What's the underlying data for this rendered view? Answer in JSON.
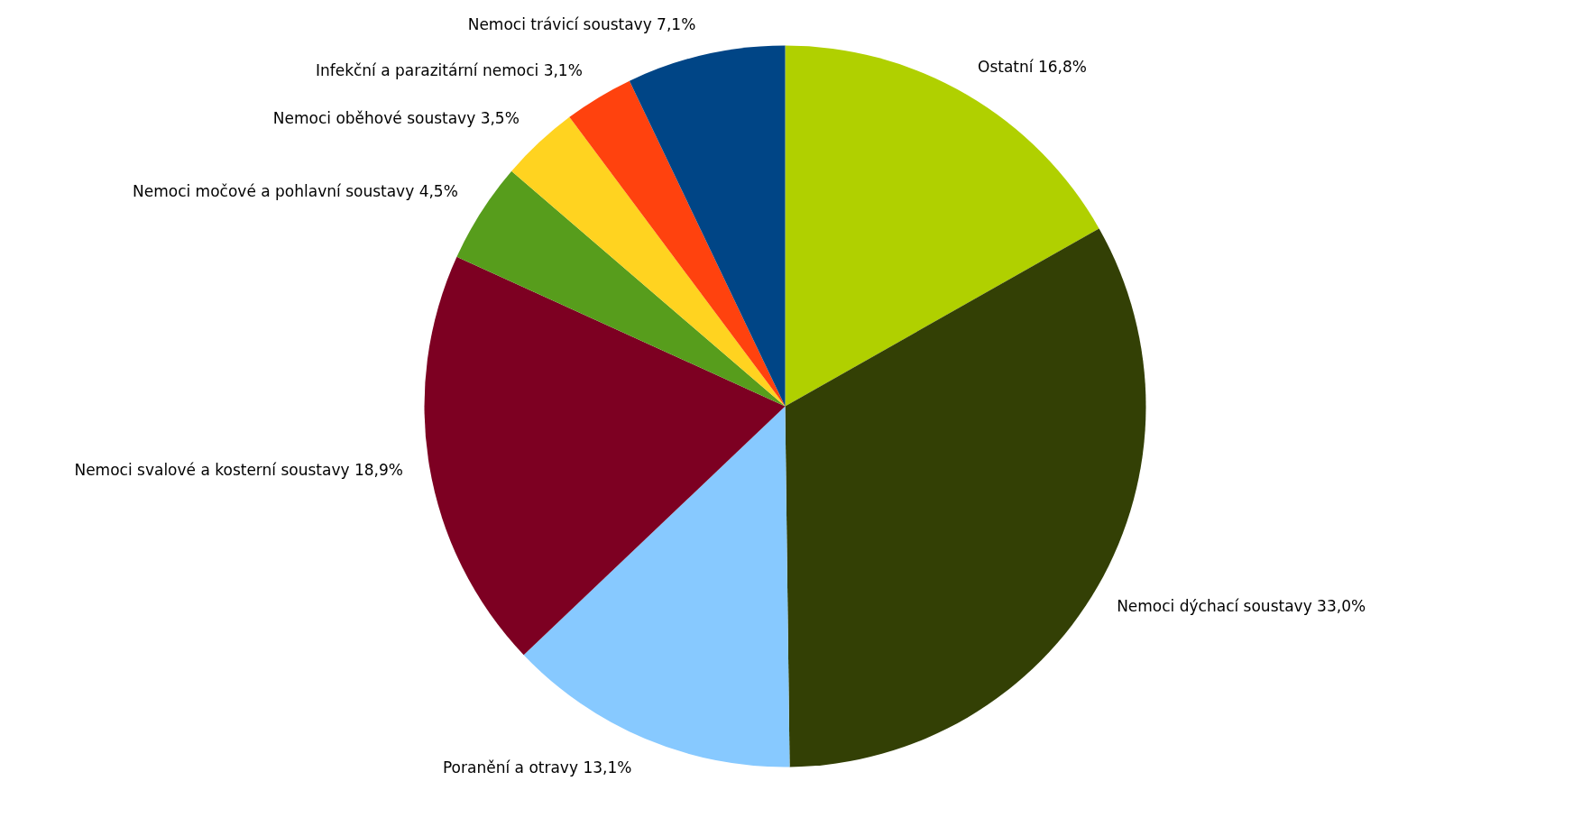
{
  "chart_data": {
    "type": "pie",
    "categories": [
      "Ostatní",
      "Nemoci dýchací soustavy",
      "Poranění a otravy",
      "Nemoci svalové a kosterní soustavy",
      "Nemoci močové a pohlavní soustavy",
      "Nemoci oběhové soustavy",
      "Infekční a parazitární nemoci",
      "Nemoci trávicí soustavy"
    ],
    "values": [
      16.8,
      33.0,
      13.1,
      18.9,
      4.5,
      3.5,
      3.1,
      7.1
    ],
    "value_labels": [
      "16,8%",
      "33,0%",
      "13,1%",
      "18,9%",
      "4,5%",
      "3,5%",
      "3,1%",
      "7,1%"
    ],
    "colors": [
      "#b0d000",
      "#334005",
      "#87c9ff",
      "#7d0022",
      "#579d1c",
      "#ffd320",
      "#ff420e",
      "#004586"
    ]
  }
}
